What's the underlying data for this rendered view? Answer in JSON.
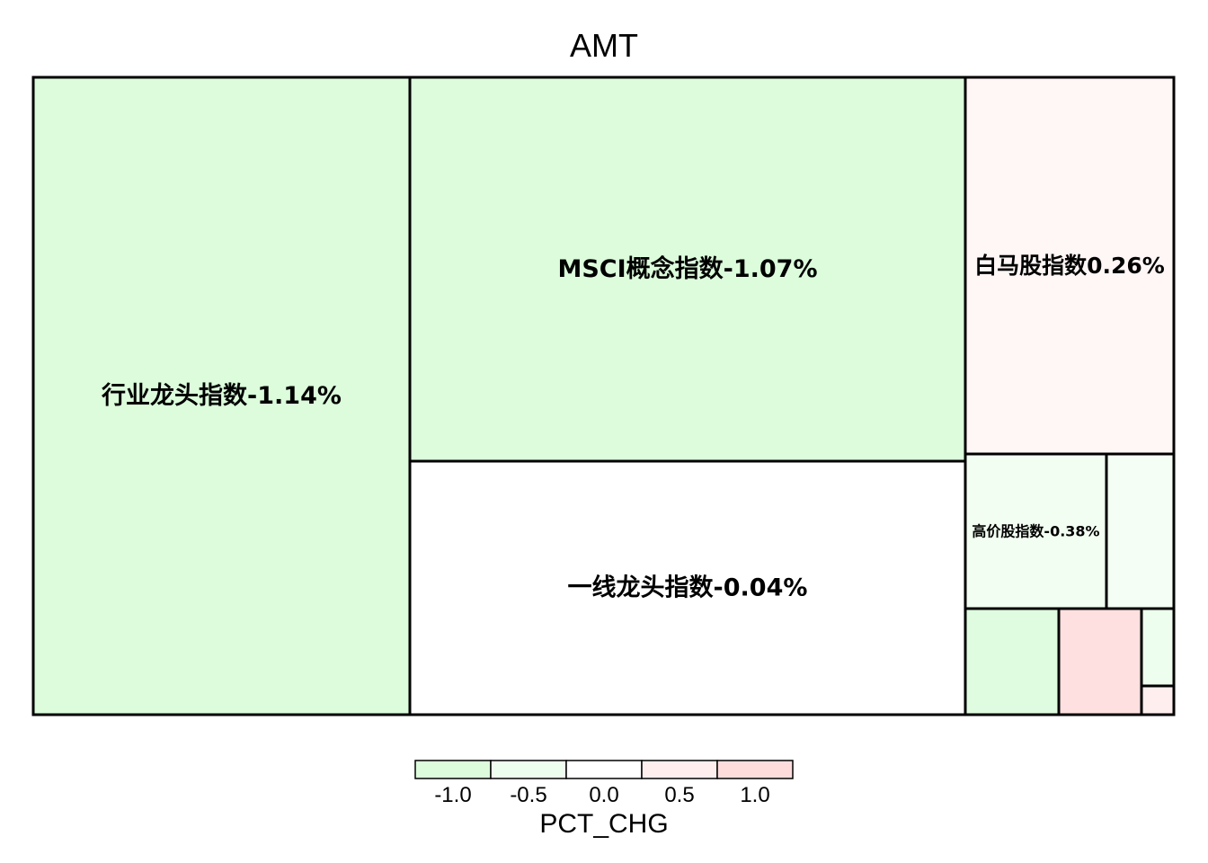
{
  "chart_data": {
    "type": "treemap",
    "title": "AMT",
    "color_variable": "PCT_CHG",
    "colors": {
      "negative": "#dcfcdc",
      "neutral": "#ffffff",
      "positive": "#fedcdc",
      "border": "#000000"
    },
    "items": [
      {
        "label": "行业龙头指数",
        "value_text": "-1.14%",
        "pct_chg": -1.14,
        "show_label": true
      },
      {
        "label": "MSCI概念指数",
        "value_text": "-1.07%",
        "pct_chg": -1.07,
        "show_label": true
      },
      {
        "label": "一线龙头指数",
        "value_text": "-0.04%",
        "pct_chg": -0.04,
        "show_label": true
      },
      {
        "label": "白马股指数",
        "value_text": "0.26%",
        "pct_chg": 0.26,
        "show_label": true
      },
      {
        "label": "高价股指数",
        "value_text": "-0.38%",
        "pct_chg": -0.38,
        "show_label": true
      },
      {
        "label": "",
        "value_text": "",
        "pct_chg": -0.3,
        "show_label": false
      },
      {
        "label": "",
        "value_text": "",
        "pct_chg": -0.9,
        "show_label": false
      },
      {
        "label": "",
        "value_text": "",
        "pct_chg": 0.9,
        "show_label": false
      },
      {
        "label": "",
        "value_text": "",
        "pct_chg": -0.5,
        "show_label": false
      },
      {
        "label": "",
        "value_text": "",
        "pct_chg": 0.5,
        "show_label": false
      }
    ],
    "legend": {
      "title": "PCT_CHG",
      "ticks": [
        "-1.0",
        "-0.5",
        "0.0",
        "0.5",
        "1.0"
      ],
      "range": [
        -1.25,
        1.25
      ]
    }
  }
}
